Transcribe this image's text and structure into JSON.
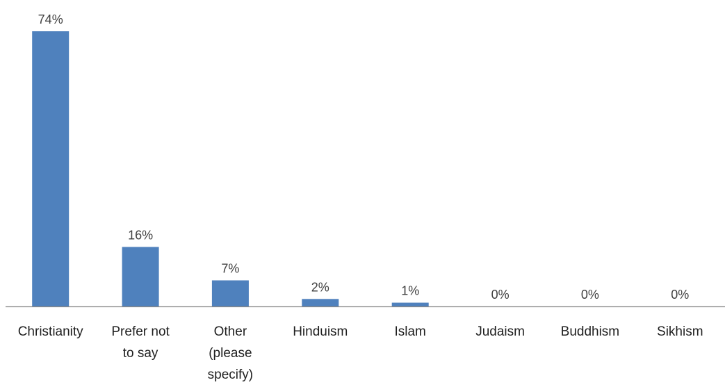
{
  "chart_data": {
    "type": "bar",
    "categories": [
      [
        "Christianity"
      ],
      [
        "Prefer not",
        "to say"
      ],
      [
        "Other",
        "(please",
        "specify)"
      ],
      [
        "Hinduism"
      ],
      [
        "Islam"
      ],
      [
        "Judaism"
      ],
      [
        "Buddhism"
      ],
      [
        "Sikhism"
      ]
    ],
    "values": [
      74,
      16,
      7,
      2,
      1,
      0,
      0,
      0
    ],
    "data_labels": [
      "74%",
      "16%",
      "7%",
      "2%",
      "1%",
      "0%",
      "0%",
      "0%"
    ],
    "value_unit": "%",
    "ylim": [
      0,
      74
    ],
    "bar_color": "#4f81bd",
    "axis_color": "#888888",
    "grid": false,
    "legend": "none"
  }
}
